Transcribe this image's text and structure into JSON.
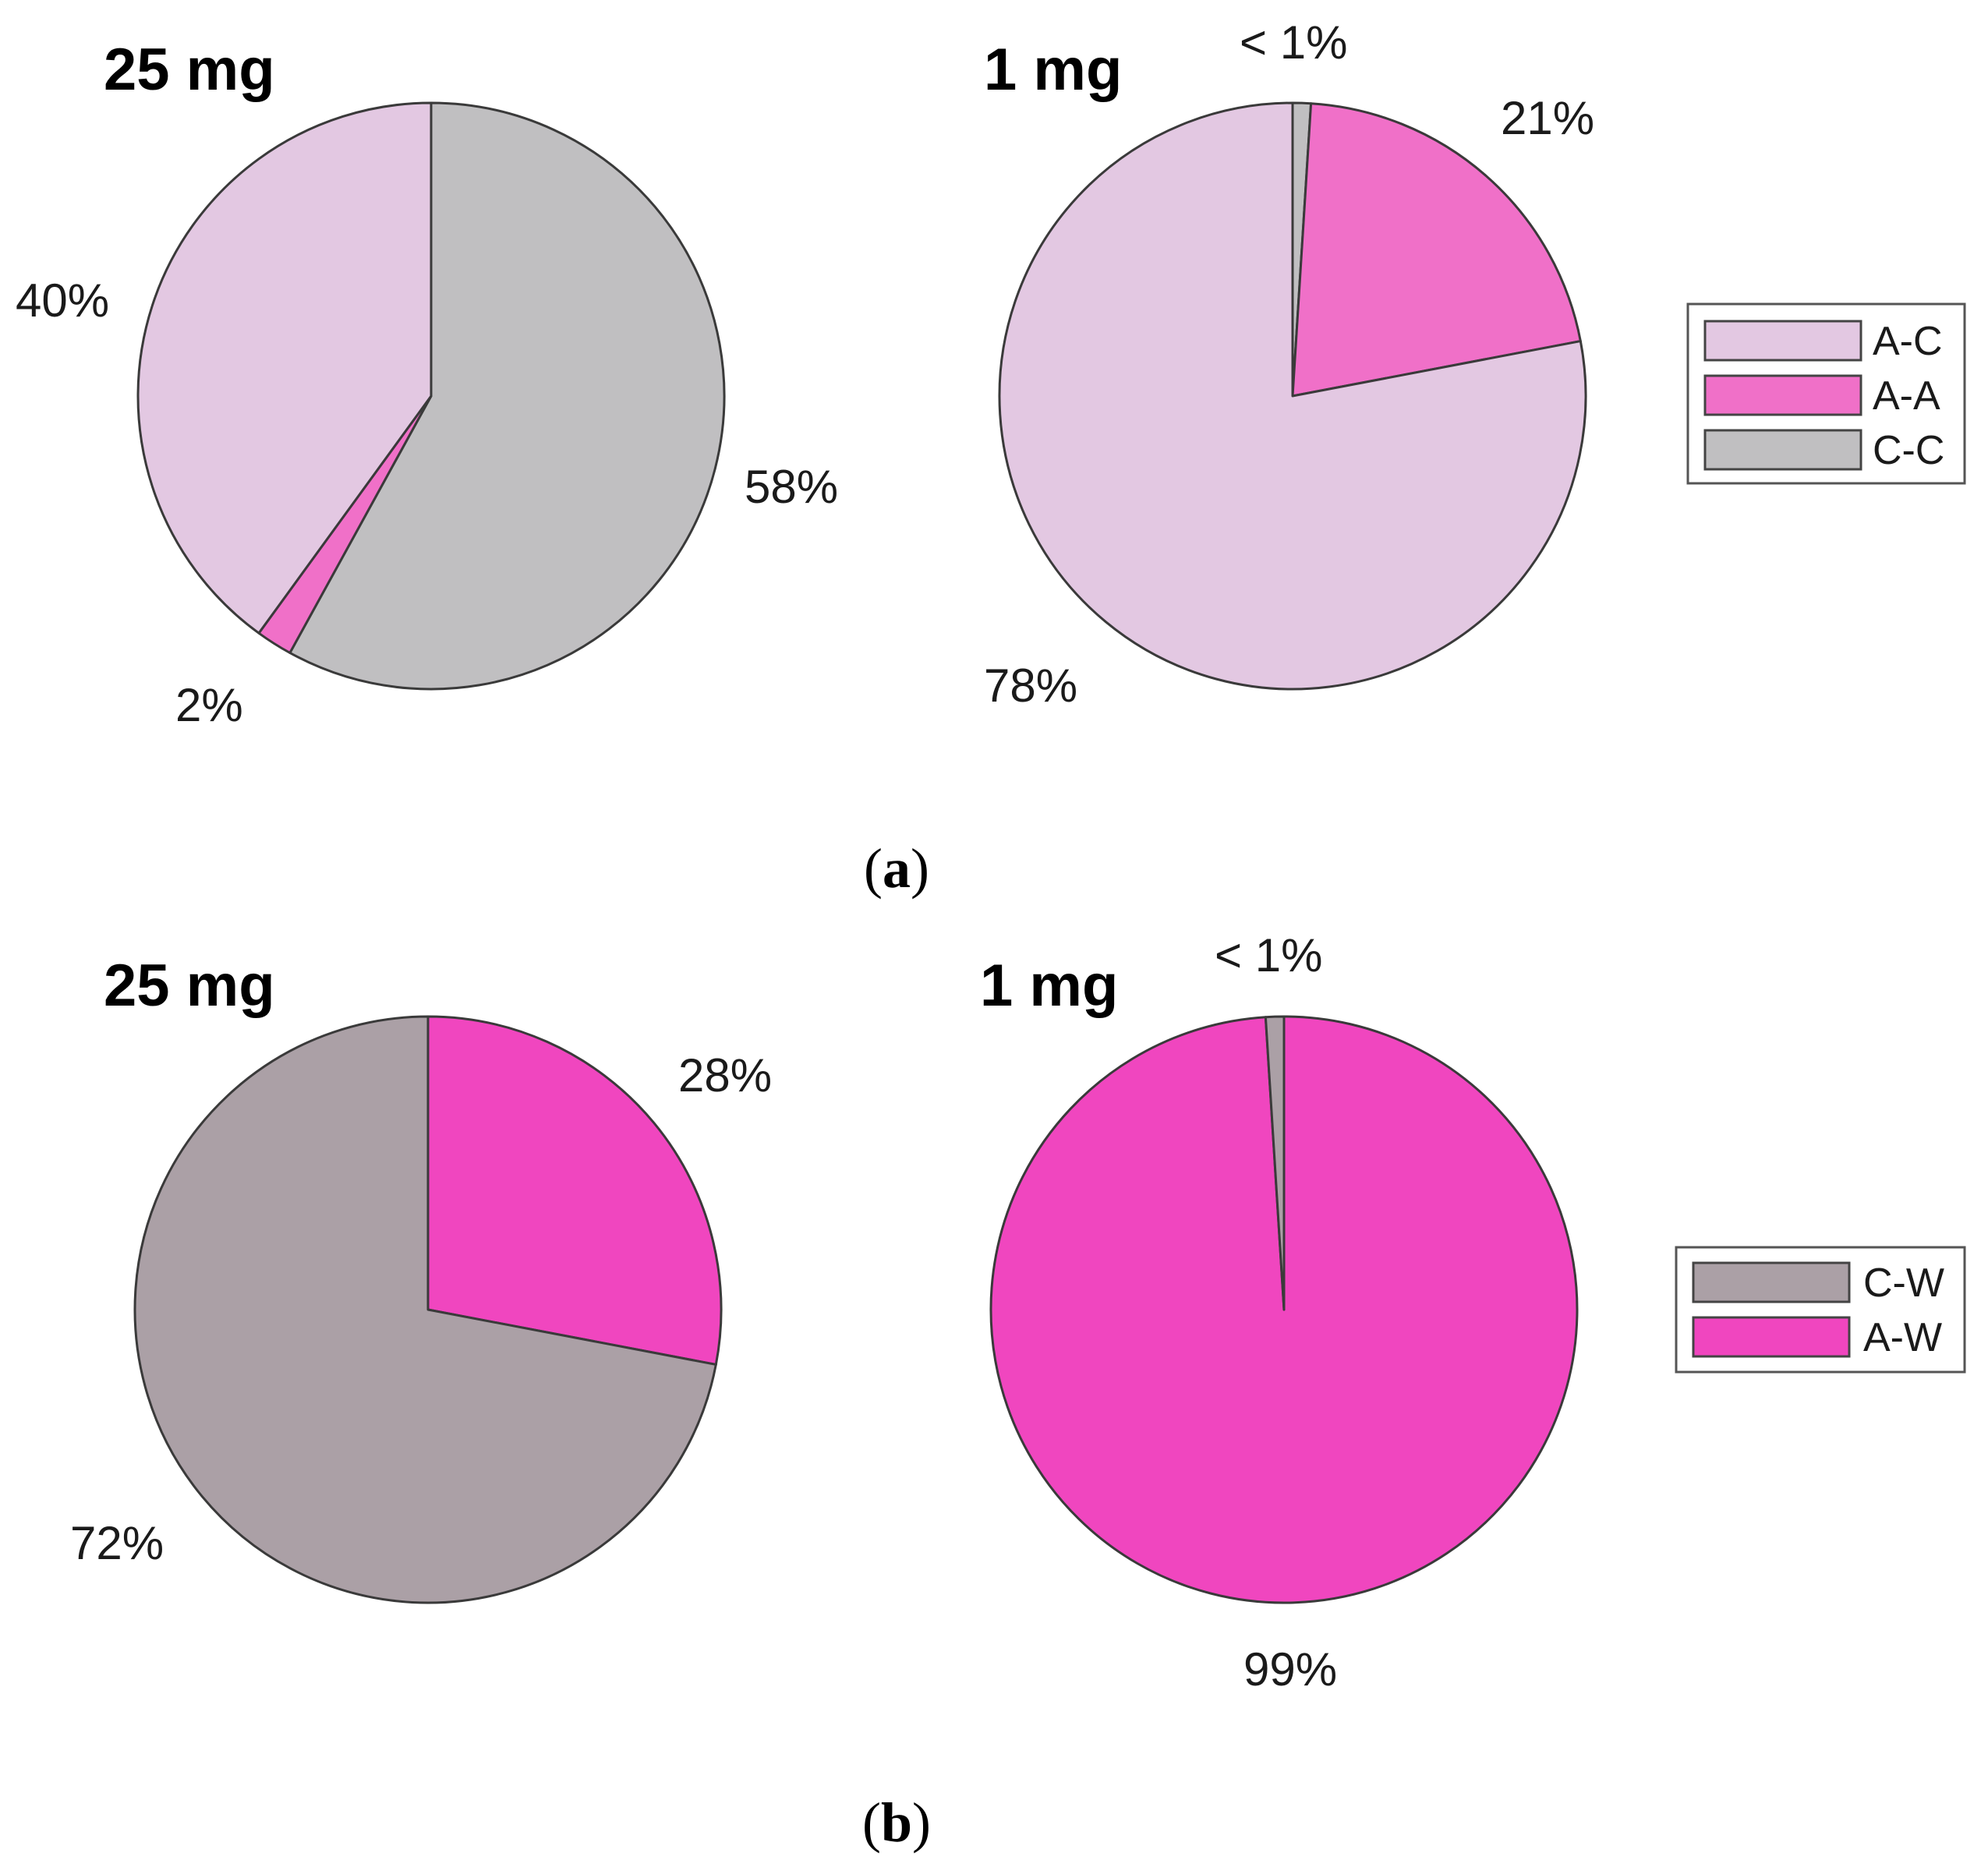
{
  "chart_data": [
    {
      "type": "pie",
      "panel": "a",
      "title": "25 mg",
      "slices": [
        {
          "label": "C-C",
          "value": 58,
          "text": "58%",
          "color": "#c0bfc1"
        },
        {
          "label": "A-A",
          "value": 2,
          "text": "2%",
          "color": "#f070c8"
        },
        {
          "label": "A-C",
          "value": 40,
          "text": "40%",
          "color": "#e3c8e2"
        }
      ]
    },
    {
      "type": "pie",
      "panel": "a",
      "title": "1 mg",
      "slices": [
        {
          "label": "C-C",
          "value": 1,
          "text": "< 1%",
          "color": "#c0bfc1"
        },
        {
          "label": "A-A",
          "value": 21,
          "text": "21%",
          "color": "#f070c8"
        },
        {
          "label": "A-C",
          "value": 78,
          "text": "78%",
          "color": "#e3c8e2"
        }
      ]
    },
    {
      "type": "pie",
      "panel": "b",
      "title": "25 mg",
      "slices": [
        {
          "label": "A-W",
          "value": 28,
          "text": "28%",
          "color": "#f046bf"
        },
        {
          "label": "C-W",
          "value": 72,
          "text": "72%",
          "color": "#aba0a6"
        }
      ]
    },
    {
      "type": "pie",
      "panel": "b",
      "title": "1 mg",
      "slices": [
        {
          "label": "A-W",
          "value": 99,
          "text": "99%",
          "color": "#f046bf"
        },
        {
          "label": "C-W",
          "value": 1,
          "text": "< 1%",
          "color": "#aba0a6"
        }
      ]
    }
  ],
  "legends": {
    "a": [
      {
        "label": "A-C",
        "color": "#e3c8e2"
      },
      {
        "label": "A-A",
        "color": "#f070c8"
      },
      {
        "label": "C-C",
        "color": "#c0bfc1"
      }
    ],
    "b": [
      {
        "label": "C-W",
        "color": "#aba0a6"
      },
      {
        "label": "A-W",
        "color": "#f046bf"
      }
    ]
  },
  "captions": {
    "a": {
      "open": "(",
      "letter": "a",
      "close": ")"
    },
    "b": {
      "open": "(",
      "letter": "b",
      "close": ")"
    }
  }
}
